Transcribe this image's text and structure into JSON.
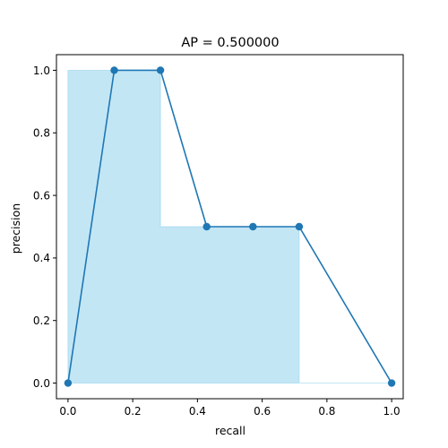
{
  "chart_data": {
    "type": "line",
    "title": "AP = 0.500000",
    "xlabel": "recall",
    "ylabel": "precision",
    "xlim": [
      -0.0357,
      1.0357
    ],
    "ylim": [
      -0.05,
      1.05
    ],
    "xticks": [
      0.0,
      0.2,
      0.4,
      0.6,
      0.8,
      1.0
    ],
    "xtick_labels": [
      "0.0",
      "0.2",
      "0.4",
      "0.6",
      "0.8",
      "1.0"
    ],
    "yticks": [
      0.0,
      0.2,
      0.4,
      0.6,
      0.8,
      1.0
    ],
    "ytick_labels": [
      "0.0",
      "0.2",
      "0.4",
      "0.6",
      "0.8",
      "1.0"
    ],
    "grid": false,
    "series": [
      {
        "x": [
          0.0,
          0.142857,
          0.285714,
          0.428571,
          0.571429,
          0.714286,
          1.0
        ],
        "y": [
          0.0,
          1.0,
          1.0,
          0.5,
          0.5,
          0.5,
          0.0
        ],
        "color": "#1f77b4",
        "marker": "circle"
      }
    ],
    "filled_step": {
      "x": [
        0.0,
        0.0,
        0.285714,
        0.285714,
        0.714286,
        0.714286,
        1.0
      ],
      "y": [
        0.0,
        1.0,
        1.0,
        0.5,
        0.5,
        0.0,
        0.0
      ],
      "fill_color": "#87ceeb",
      "fill_alpha": 0.5
    }
  }
}
